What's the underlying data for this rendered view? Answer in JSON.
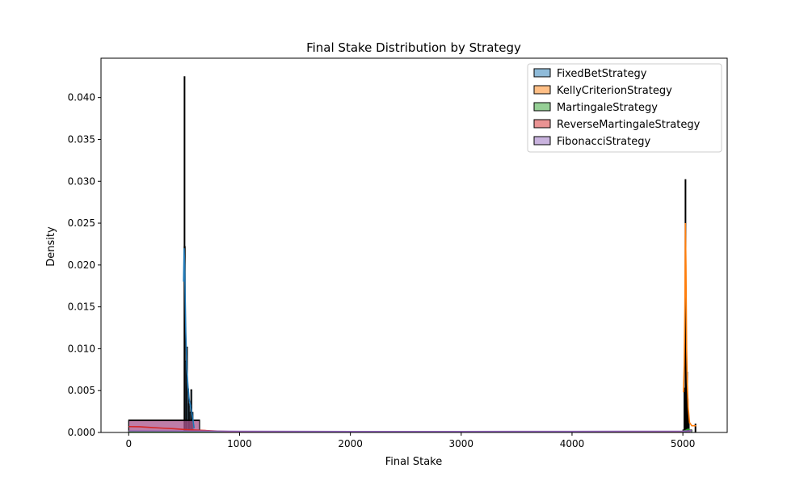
{
  "chart_data": {
    "type": "histogram",
    "title": "Final Stake Distribution by Strategy",
    "xlabel": "Final Stake",
    "ylabel": "Density",
    "xlim": [
      -250,
      5400
    ],
    "ylim": [
      0,
      0.0447
    ],
    "xticks": [
      0,
      1000,
      2000,
      3000,
      4000,
      5000
    ],
    "xtick_labels": [
      "0",
      "1000",
      "2000",
      "3000",
      "4000",
      "5000"
    ],
    "yticks": [
      0,
      0.005,
      0.01,
      0.015,
      0.02,
      0.025,
      0.03,
      0.035,
      0.04
    ],
    "ytick_labels": [
      "0.000",
      "0.005",
      "0.010",
      "0.015",
      "0.020",
      "0.025",
      "0.030",
      "0.035",
      "0.040"
    ],
    "grid": false,
    "legend_position": "top-right",
    "series": [
      {
        "name": "FixedBetStrategy",
        "color": "#1f77b4",
        "bars": [
          {
            "x0": 500,
            "x1": 510,
            "y": 0.0222
          },
          {
            "x0": 510,
            "x1": 520,
            "y": 0.0085
          },
          {
            "x0": 520,
            "x1": 530,
            "y": 0.0102
          },
          {
            "x0": 530,
            "x1": 540,
            "y": 0.0052
          },
          {
            "x0": 540,
            "x1": 550,
            "y": 0.0034
          },
          {
            "x0": 550,
            "x1": 560,
            "y": 0.0024
          },
          {
            "x0": 560,
            "x1": 570,
            "y": 0.0051
          },
          {
            "x0": 570,
            "x1": 580,
            "y": 0.0024
          }
        ],
        "kde": [
          [
            495,
            0.018
          ],
          [
            500,
            0.022
          ],
          [
            505,
            0.02
          ],
          [
            515,
            0.012
          ],
          [
            525,
            0.0075
          ],
          [
            535,
            0.0055
          ],
          [
            545,
            0.004
          ],
          [
            560,
            0.003
          ],
          [
            575,
            0.002
          ],
          [
            590,
            0.0005
          ]
        ]
      },
      {
        "name": "KellyCriterionStrategy",
        "color": "#ff7f0e",
        "bars": [
          {
            "x0": 5010,
            "x1": 5015,
            "y": 0.0048
          },
          {
            "x0": 5015,
            "x1": 5020,
            "y": 0.0053
          },
          {
            "x0": 5020,
            "x1": 5025,
            "y": 0.0302
          },
          {
            "x0": 5025,
            "x1": 5030,
            "y": 0.0105
          },
          {
            "x0": 5030,
            "x1": 5035,
            "y": 0.0058
          },
          {
            "x0": 5035,
            "x1": 5040,
            "y": 0.0072
          },
          {
            "x0": 5040,
            "x1": 5045,
            "y": 0.004
          },
          {
            "x0": 5045,
            "x1": 5050,
            "y": 0.002
          },
          {
            "x0": 5050,
            "x1": 5055,
            "y": 0.001
          },
          {
            "x0": 5110,
            "x1": 5115,
            "y": 0.001
          }
        ],
        "kde": [
          [
            5005,
            0.0048
          ],
          [
            5012,
            0.008
          ],
          [
            5018,
            0.015
          ],
          [
            5023,
            0.025
          ],
          [
            5028,
            0.02
          ],
          [
            5034,
            0.01
          ],
          [
            5040,
            0.006
          ],
          [
            5048,
            0.003
          ],
          [
            5060,
            0.0012
          ],
          [
            5080,
            0.0008
          ],
          [
            5100,
            0.0008
          ],
          [
            5120,
            0.0008
          ]
        ]
      },
      {
        "name": "MartingaleStrategy",
        "color": "#2ca02c",
        "bars": [
          {
            "x0": 500,
            "x1": 505,
            "y": 0.0425
          },
          {
            "x0": 5040,
            "x1": 5060,
            "y": 0.0003
          }
        ],
        "kde": [
          [
            0,
            0.0001
          ],
          [
            5000,
            0.0001
          ],
          [
            5050,
            0.0004
          ],
          [
            5080,
            0.0001
          ]
        ]
      },
      {
        "name": "ReverseMartingaleStrategy",
        "color": "#d62728",
        "bars": [
          {
            "x0": 0,
            "x1": 640,
            "y": 0.0015
          },
          {
            "x0": 5030,
            "x1": 5080,
            "y": 0.0002
          }
        ],
        "kde": [
          [
            0,
            0.0007
          ],
          [
            100,
            0.00068
          ],
          [
            200,
            0.0006
          ],
          [
            300,
            0.00052
          ],
          [
            400,
            0.00045
          ],
          [
            500,
            0.00036
          ],
          [
            600,
            0.00029
          ],
          [
            700,
            0.00023
          ],
          [
            800,
            0.00017
          ],
          [
            900,
            0.00012
          ],
          [
            1000,
            8e-05
          ],
          [
            1200,
            4e-05
          ],
          [
            1500,
            2e-05
          ],
          [
            2000,
            1e-05
          ],
          [
            5000,
            1e-05
          ]
        ]
      },
      {
        "name": "FibonacciStrategy",
        "color": "#9467bd",
        "bars": [
          {
            "x0": 0,
            "x1": 640,
            "y": 0.0014
          },
          {
            "x0": 5000,
            "x1": 5080,
            "y": 0.0003
          }
        ],
        "kde": [
          [
            0,
            0.00018
          ],
          [
            500,
            0.00017
          ],
          [
            1000,
            0.00014
          ],
          [
            2000,
            0.00012
          ],
          [
            3000,
            0.00012
          ],
          [
            4000,
            0.00013
          ],
          [
            5000,
            0.00015
          ],
          [
            5080,
            0.0002
          ]
        ]
      }
    ]
  }
}
